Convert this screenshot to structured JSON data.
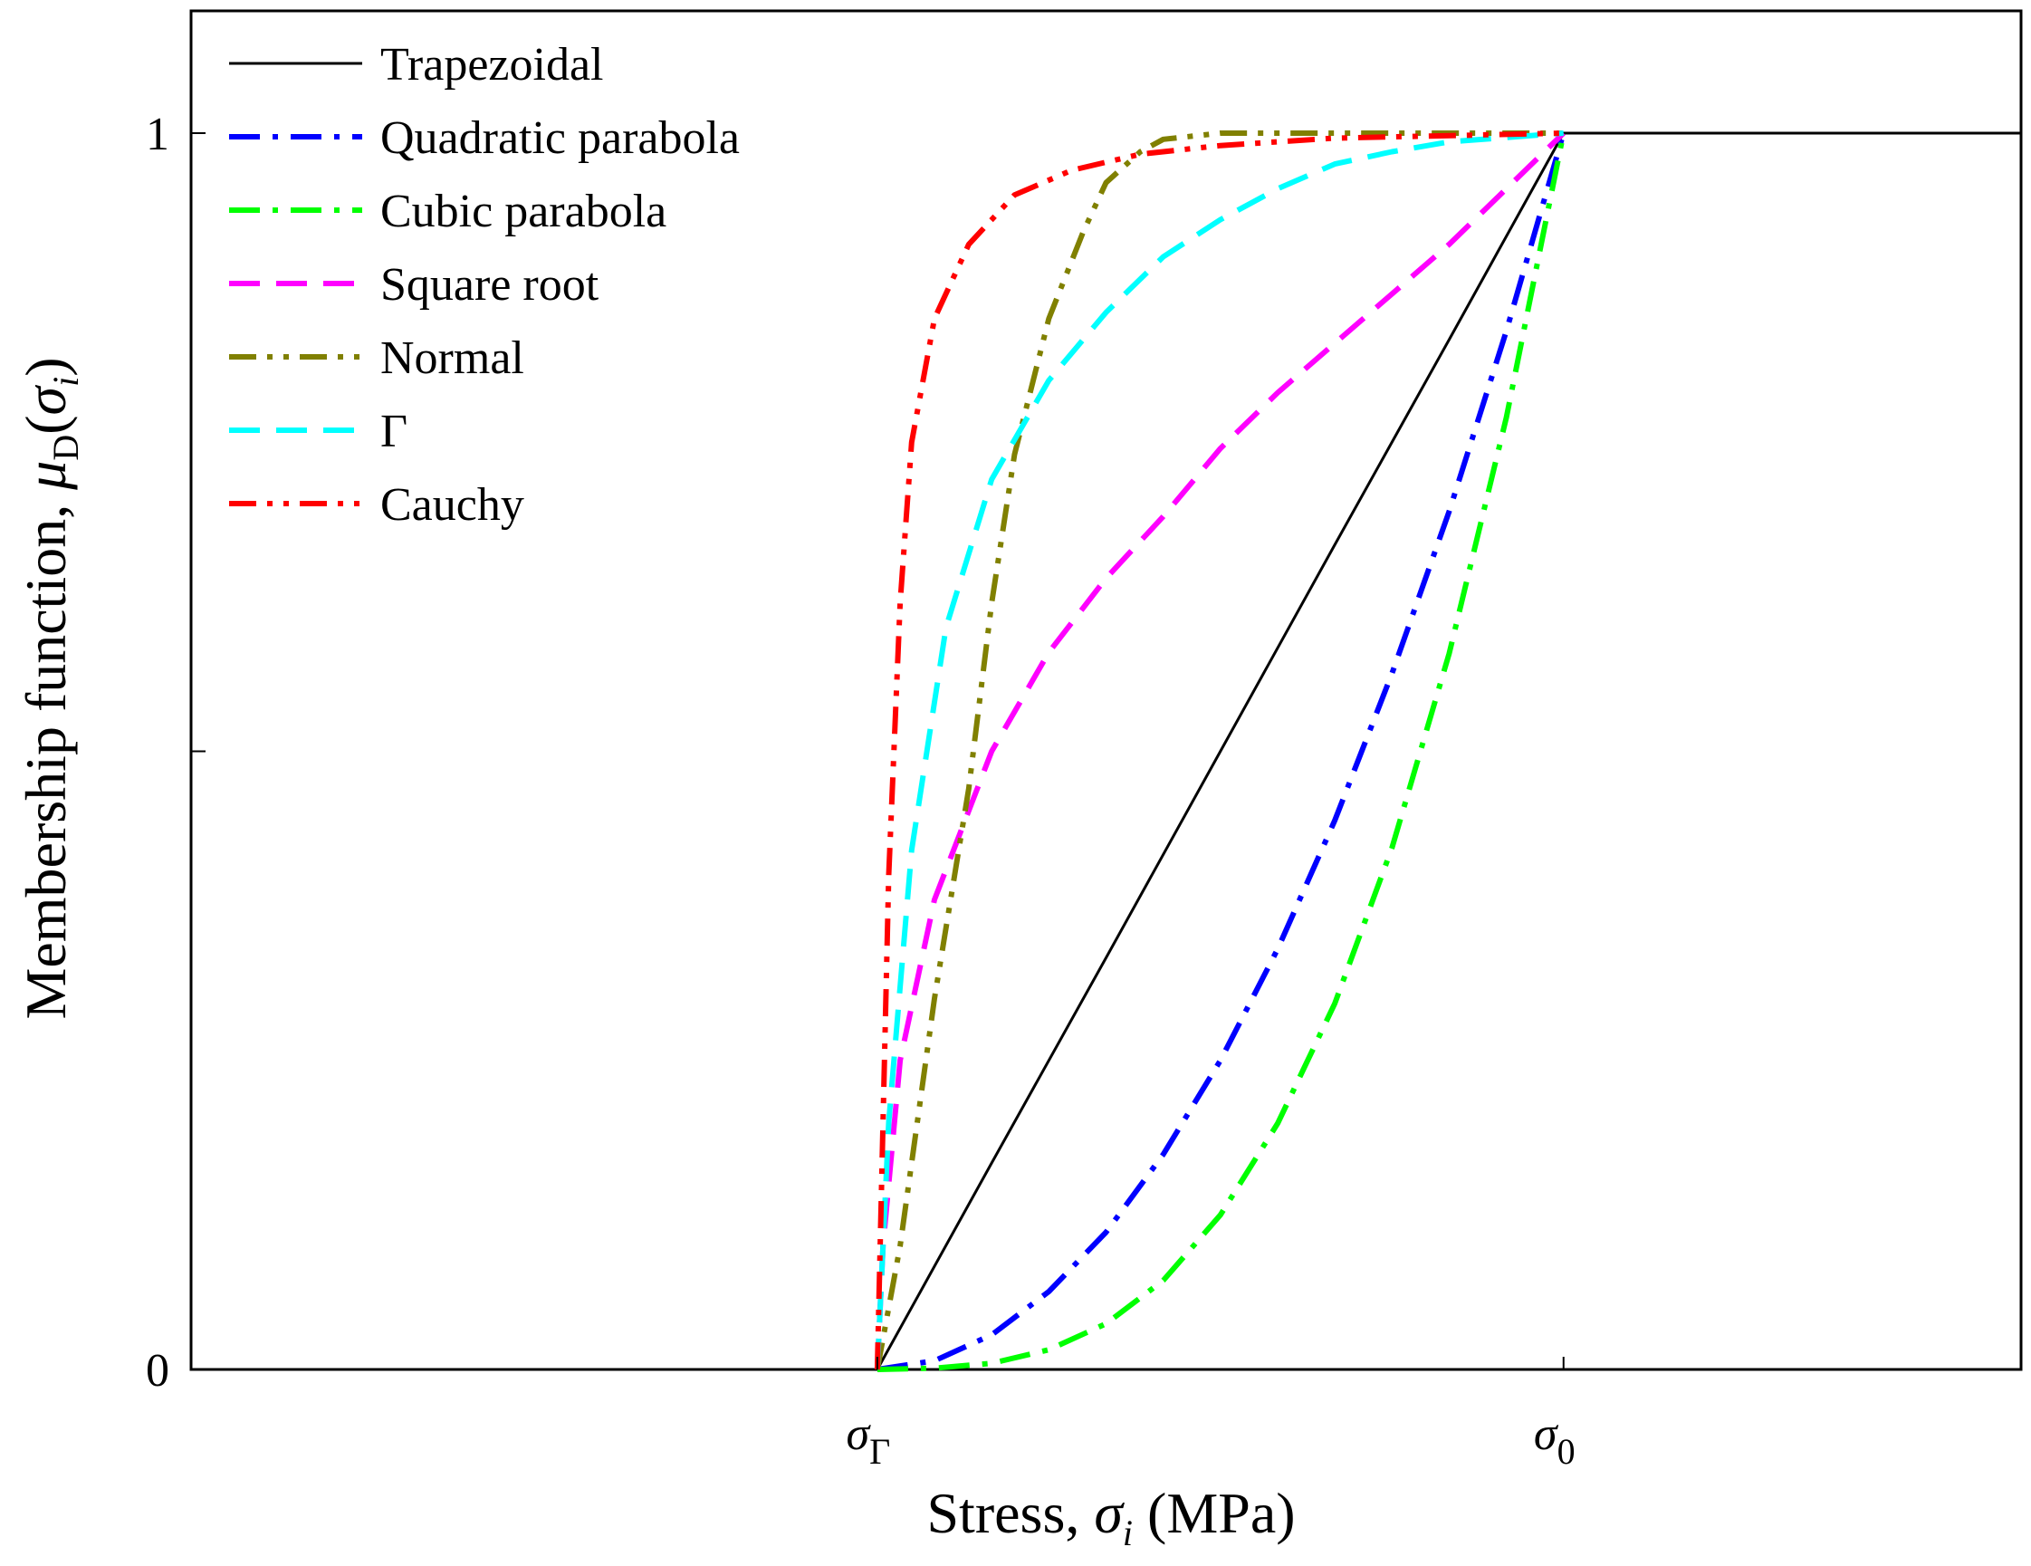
{
  "chart_data": {
    "type": "line",
    "title": "",
    "xlabel": {
      "prefix": "Stress, ",
      "symbol": "σ",
      "sub": "i",
      "suffix": " (MPa)"
    },
    "ylabel": {
      "prefix": "Membership function, ",
      "mu": "μ",
      "mu_sub": "D",
      "open": "(",
      "symbol": "σ",
      "sub": "i",
      "close": ")"
    },
    "xlim": [
      0,
      1.6
    ],
    "ylim": [
      0,
      1.1
    ],
    "x_ticks": [
      {
        "value": 0.6,
        "symbol": "σ",
        "sub": "Γ"
      },
      {
        "value": 1.2,
        "symbol": "σ",
        "sub": "0"
      }
    ],
    "y_ticks": [
      {
        "value": 0,
        "label": "0"
      },
      {
        "value": 0.5,
        "label": ""
      },
      {
        "value": 1,
        "label": "1"
      }
    ],
    "legend_position": "top-left",
    "series": [
      {
        "name": "Trapezoidal",
        "color": "#000000",
        "style": "solid",
        "x": [
          0.6,
          0.7,
          0.8,
          0.9,
          1.0,
          1.1,
          1.2,
          1.3,
          1.6
        ],
        "y": [
          0,
          0.167,
          0.333,
          0.5,
          0.667,
          0.833,
          1,
          1,
          1
        ]
      },
      {
        "name": "Quadratic parabola",
        "color": "#0000ff",
        "style": "dashdot",
        "x": [
          0.6,
          0.65,
          0.7,
          0.75,
          0.8,
          0.85,
          0.9,
          0.95,
          1.0,
          1.05,
          1.1,
          1.15,
          1.2
        ],
        "y": [
          0,
          0.007,
          0.028,
          0.063,
          0.111,
          0.174,
          0.25,
          0.34,
          0.444,
          0.563,
          0.694,
          0.84,
          1
        ]
      },
      {
        "name": "Cubic parabola",
        "color": "#00ff00",
        "style": "dashdot",
        "x": [
          0.6,
          0.65,
          0.7,
          0.75,
          0.8,
          0.85,
          0.9,
          0.95,
          1.0,
          1.05,
          1.1,
          1.15,
          1.2
        ],
        "y": [
          0,
          0.001,
          0.005,
          0.016,
          0.037,
          0.072,
          0.125,
          0.199,
          0.296,
          0.422,
          0.579,
          0.77,
          1
        ]
      },
      {
        "name": "Square root",
        "color": "#ff00ff",
        "style": "dash",
        "x": [
          0.6,
          0.605,
          0.62,
          0.65,
          0.7,
          0.75,
          0.8,
          0.85,
          0.9,
          0.95,
          1.0,
          1.05,
          1.1,
          1.15,
          1.2
        ],
        "y": [
          0,
          0.1,
          0.25,
          0.38,
          0.5,
          0.58,
          0.64,
          0.69,
          0.745,
          0.79,
          0.83,
          0.87,
          0.91,
          0.955,
          1
        ]
      },
      {
        "name": "Normal",
        "color": "#808000",
        "style": "dashdotdot",
        "x": [
          0.6,
          0.62,
          0.65,
          0.68,
          0.7,
          0.72,
          0.75,
          0.78,
          0.8,
          0.83,
          0.85,
          0.9,
          1.0,
          1.2
        ],
        "y": [
          0,
          0.1,
          0.3,
          0.47,
          0.62,
          0.74,
          0.85,
          0.92,
          0.96,
          0.985,
          0.995,
          1,
          1,
          1
        ]
      },
      {
        "name": "Γ",
        "color": "#00ffff",
        "style": "dash",
        "x": [
          0.6,
          0.61,
          0.63,
          0.66,
          0.7,
          0.75,
          0.8,
          0.85,
          0.9,
          0.95,
          1.0,
          1.05,
          1.1,
          1.2
        ],
        "y": [
          0,
          0.2,
          0.42,
          0.6,
          0.72,
          0.8,
          0.855,
          0.9,
          0.93,
          0.955,
          0.975,
          0.985,
          0.993,
          1
        ]
      },
      {
        "name": "Cauchy",
        "color": "#ff0000",
        "style": "dashdotdot",
        "x": [
          0.6,
          0.61,
          0.62,
          0.63,
          0.65,
          0.68,
          0.72,
          0.77,
          0.83,
          0.9,
          1.0,
          1.2
        ],
        "y": [
          0,
          0.4,
          0.62,
          0.75,
          0.85,
          0.91,
          0.95,
          0.97,
          0.983,
          0.99,
          0.996,
          1
        ]
      }
    ]
  }
}
